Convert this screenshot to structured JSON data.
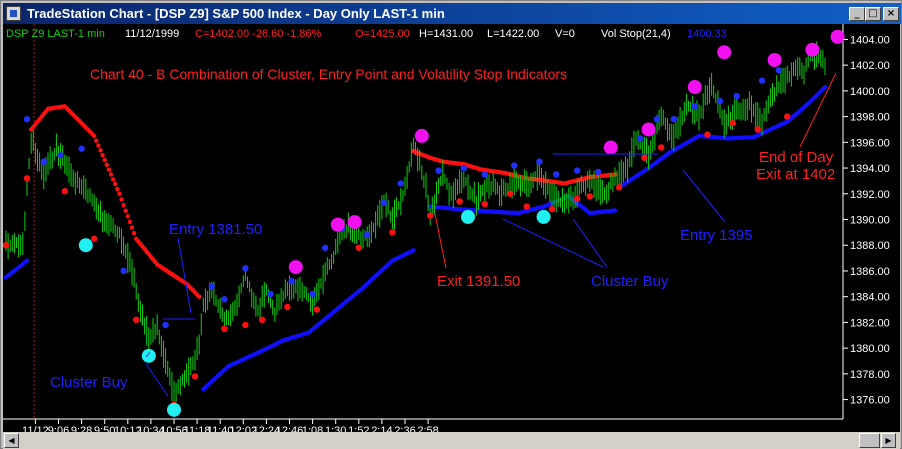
{
  "window": {
    "title": "TradeStation Chart - [DSP Z9] S&P 500 Index - Day Only LAST-1 min",
    "minimize_label": "_",
    "maximize_label": "□",
    "close_label": "×"
  },
  "status_bar": {
    "symbol": "DSP Z9 LAST-1 min",
    "date": "11/12/1999",
    "change": "C=1402.00  -26.60  -1.86%",
    "open": "O=1425.00",
    "high": "H=1431.00",
    "low": "L=1422.00",
    "volume": "V=0",
    "indicator": "Vol Stop(21,4)",
    "indicator_value": "1400.33"
  },
  "colors": {
    "background": "#000000",
    "price_bars": "#10d010",
    "swing_high": "#2030ff",
    "swing_low": "#ff1010",
    "stop_long": "#1010ff",
    "stop_short": "#ff1010",
    "cluster_buy": "#20f0f0",
    "cluster_sell": "#f010f0",
    "annotation_red": "#ff2020",
    "annotation_blue": "#2020ff",
    "axis_text": "#ffffff"
  },
  "chart_data": {
    "type": "ohlc",
    "title": "Chart 40 - B  Combination of Cluster, Entry Point and Volatility Stop Indicators",
    "x_ticks": [
      "11/12",
      "9:06",
      "9:28",
      "9:50",
      "10:12",
      "10:34",
      "10:56",
      "11:18",
      "11:40",
      "12:02",
      "12:24",
      "12:46",
      "1:08",
      "1:30",
      "1:52",
      "2:14",
      "2:36",
      "2:58"
    ],
    "y_ticks": [
      1376.0,
      1378.0,
      1380.0,
      1382.0,
      1384.0,
      1386.0,
      1388.0,
      1390.0,
      1392.0,
      1394.0,
      1396.0,
      1398.0,
      1400.0,
      1402.0,
      1404.0
    ],
    "ylim": [
      1374.8,
      1404.5
    ],
    "price_path": [
      [
        0,
        1388.0
      ],
      [
        4,
        1388.3
      ],
      [
        6,
        1396.3
      ],
      [
        9,
        1393.5
      ],
      [
        12,
        1395.5
      ],
      [
        16,
        1393.2
      ],
      [
        19,
        1392.2
      ],
      [
        22,
        1390.5
      ],
      [
        27,
        1389.0
      ],
      [
        30,
        1386.0
      ],
      [
        32,
        1383.0
      ],
      [
        34,
        1380.8
      ],
      [
        36,
        1381.5
      ],
      [
        38,
        1379.0
      ],
      [
        40,
        1376.3
      ],
      [
        42,
        1377.5
      ],
      [
        44,
        1378.3
      ],
      [
        46,
        1380.3
      ],
      [
        47,
        1383.5
      ],
      [
        49,
        1384.6
      ],
      [
        52,
        1382.0
      ],
      [
        54,
        1382.5
      ],
      [
        57,
        1385.6
      ],
      [
        60,
        1383.0
      ],
      [
        62,
        1384.7
      ],
      [
        64,
        1382.8
      ],
      [
        67,
        1384.5
      ],
      [
        70,
        1384.8
      ],
      [
        73,
        1383.5
      ],
      [
        75,
        1385.0
      ],
      [
        78,
        1387.2
      ],
      [
        80,
        1389.0
      ],
      [
        82,
        1389.5
      ],
      [
        85,
        1388.5
      ],
      [
        88,
        1389.5
      ],
      [
        90,
        1391.5
      ],
      [
        92,
        1390.0
      ],
      [
        95,
        1392.2
      ],
      [
        97,
        1396.0
      ],
      [
        100,
        1392.5
      ],
      [
        101,
        1390.5
      ],
      [
        104,
        1393.5
      ],
      [
        106,
        1391.8
      ],
      [
        109,
        1393.2
      ],
      [
        112,
        1391.5
      ],
      [
        115,
        1392.8
      ],
      [
        118,
        1392.0
      ],
      [
        121,
        1393.0
      ],
      [
        124,
        1392.8
      ],
      [
        127,
        1393.5
      ],
      [
        130,
        1391.8
      ],
      [
        133,
        1391.2
      ],
      [
        136,
        1392.0
      ],
      [
        139,
        1393.2
      ],
      [
        142,
        1392.0
      ],
      [
        145,
        1393.0
      ],
      [
        148,
        1394.0
      ],
      [
        150,
        1396.5
      ],
      [
        153,
        1395.0
      ],
      [
        156,
        1398.0
      ],
      [
        159,
        1396.3
      ],
      [
        162,
        1399.0
      ],
      [
        165,
        1398.0
      ],
      [
        168,
        1400.5
      ],
      [
        171,
        1397.5
      ],
      [
        174,
        1398.5
      ],
      [
        177,
        1398.8
      ],
      [
        180,
        1397.5
      ],
      [
        183,
        1400.0
      ],
      [
        186,
        1401.0
      ],
      [
        188,
        1402.0
      ],
      [
        190,
        1401.5
      ],
      [
        192,
        1403.0
      ],
      [
        195,
        1402.0
      ]
    ],
    "swing_highs": [
      [
        5,
        1397.8
      ],
      [
        9,
        1394.5
      ],
      [
        13,
        1395.0
      ],
      [
        18,
        1395.5
      ],
      [
        28,
        1386.0
      ],
      [
        38,
        1381.8
      ],
      [
        49,
        1384.8
      ],
      [
        52,
        1383.8
      ],
      [
        57,
        1386.2
      ],
      [
        63,
        1384.2
      ],
      [
        68,
        1385.2
      ],
      [
        73,
        1384.2
      ],
      [
        76,
        1387.8
      ],
      [
        80,
        1389.3
      ],
      [
        86,
        1388.8
      ],
      [
        90,
        1391.3
      ],
      [
        94,
        1392.8
      ],
      [
        103,
        1393.8
      ],
      [
        109,
        1394.0
      ],
      [
        114,
        1393.5
      ],
      [
        121,
        1394.2
      ],
      [
        127,
        1394.5
      ],
      [
        131,
        1393.5
      ],
      [
        136,
        1393.8
      ],
      [
        141,
        1393.7
      ],
      [
        151,
        1396.3
      ],
      [
        155,
        1397.8
      ],
      [
        159,
        1397.8
      ],
      [
        164,
        1398.8
      ],
      [
        170,
        1399.2
      ],
      [
        174,
        1399.6
      ],
      [
        180,
        1400.8
      ],
      [
        184,
        1401.6
      ]
    ],
    "swing_lows": [
      [
        0,
        1388.0
      ],
      [
        5,
        1393.2
      ],
      [
        14,
        1392.2
      ],
      [
        21,
        1388.5
      ],
      [
        31,
        1382.2
      ],
      [
        40,
        1375.6
      ],
      [
        45,
        1377.8
      ],
      [
        52,
        1381.5
      ],
      [
        57,
        1381.8
      ],
      [
        61,
        1382.2
      ],
      [
        67,
        1383.2
      ],
      [
        74,
        1383.0
      ],
      [
        84,
        1387.8
      ],
      [
        92,
        1389.0
      ],
      [
        101,
        1390.3
      ],
      [
        108,
        1391.4
      ],
      [
        114,
        1391.2
      ],
      [
        120,
        1392.0
      ],
      [
        124,
        1391.0
      ],
      [
        130,
        1390.8
      ],
      [
        136,
        1391.6
      ],
      [
        139,
        1391.8
      ],
      [
        146,
        1392.5
      ],
      [
        152,
        1394.8
      ],
      [
        156,
        1395.6
      ],
      [
        167,
        1396.6
      ],
      [
        173,
        1397.5
      ],
      [
        179,
        1397.0
      ],
      [
        186,
        1398.0
      ]
    ],
    "vol_stop_long_segments": [
      [
        [
          0,
          1385.5
        ],
        [
          5,
          1386.8
        ]
      ],
      [
        [
          47,
          1376.8
        ],
        [
          53,
          1378.6
        ],
        [
          61,
          1379.8
        ],
        [
          66,
          1380.6
        ],
        [
          72,
          1381.2
        ],
        [
          78,
          1382.8
        ],
        [
          85,
          1384.7
        ],
        [
          92,
          1386.8
        ],
        [
          97,
          1387.6
        ]
      ],
      [
        [
          101,
          1391.0
        ],
        [
          108,
          1390.8
        ],
        [
          116,
          1390.6
        ],
        [
          122,
          1390.5
        ],
        [
          128,
          1391.0
        ],
        [
          134,
          1391.8
        ],
        [
          139,
          1390.5
        ],
        [
          145,
          1390.7
        ]
      ],
      [
        [
          147,
          1392.7
        ],
        [
          153,
          1394.0
        ],
        [
          158,
          1395.2
        ],
        [
          165,
          1396.5
        ],
        [
          172,
          1396.3
        ],
        [
          178,
          1396.4
        ],
        [
          186,
          1397.6
        ],
        [
          191,
          1399.0
        ],
        [
          195,
          1400.3
        ]
      ]
    ],
    "vol_stop_short_segments": [
      [
        [
          6,
          1397.0
        ],
        [
          10,
          1398.6
        ],
        [
          14,
          1398.8
        ],
        [
          18,
          1397.5
        ],
        [
          21,
          1396.5
        ],
        [
          27,
          1392.0
        ],
        [
          31,
          1388.5
        ],
        [
          36,
          1386.5
        ],
        [
          43,
          1385.0
        ],
        [
          46,
          1384.0
        ]
      ],
      [
        [
          97,
          1395.3
        ],
        [
          101,
          1394.8
        ],
        [
          104,
          1394.5
        ],
        [
          109,
          1394.3
        ],
        [
          113,
          1393.9
        ],
        [
          119,
          1393.6
        ],
        [
          124,
          1393.2
        ],
        [
          129,
          1393.0
        ],
        [
          133,
          1392.8
        ],
        [
          139,
          1393.3
        ],
        [
          145,
          1393.5
        ]
      ]
    ],
    "cluster_buy": [
      [
        19,
        1388.0
      ],
      [
        34,
        1379.4
      ],
      [
        40,
        1375.2
      ],
      [
        110,
        1390.2
      ],
      [
        128,
        1390.2
      ]
    ],
    "cluster_sell": [
      [
        69,
        1386.3
      ],
      [
        79,
        1389.6
      ],
      [
        83,
        1389.8
      ],
      [
        99,
        1396.5
      ],
      [
        144,
        1395.6
      ],
      [
        153,
        1397.0
      ],
      [
        164,
        1400.3
      ],
      [
        171,
        1403.0
      ],
      [
        183,
        1402.4
      ],
      [
        192,
        1403.2
      ],
      [
        198,
        1404.2
      ]
    ],
    "annotations": [
      {
        "text": "Entry   1381.50",
        "color": "blue"
      },
      {
        "text": "Cluster Buy",
        "color": "blue"
      },
      {
        "text": "Exit   1391.50",
        "color": "red"
      },
      {
        "text": "Cluster Buy",
        "color": "blue"
      },
      {
        "text": "Entry   1395",
        "color": "blue"
      },
      {
        "text": "End of Day",
        "color": "red"
      },
      {
        "text": "Exit at 1402",
        "color": "red"
      }
    ]
  }
}
